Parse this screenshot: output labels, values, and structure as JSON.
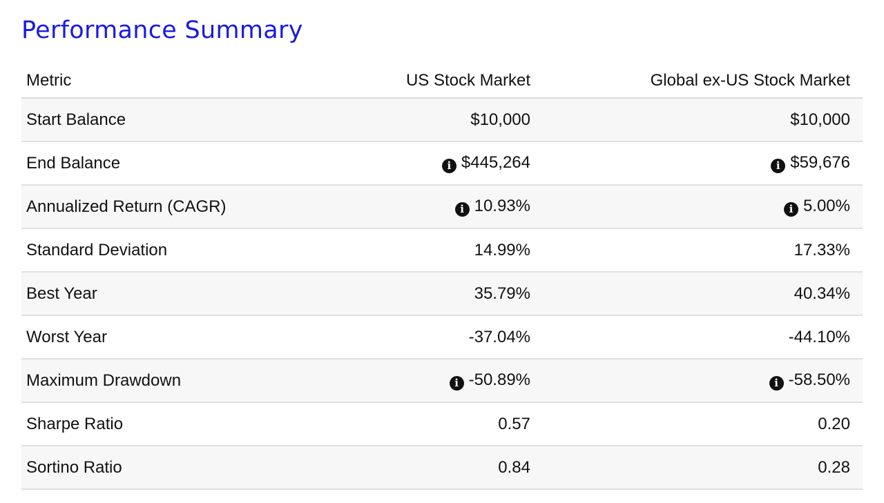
{
  "page": {
    "title": "Performance Summary",
    "accent_color": "#1a1adf"
  },
  "table": {
    "headers": [
      "Metric",
      "US Stock Market",
      "Global ex-US Stock Market"
    ],
    "rows": [
      {
        "metric": "Start Balance",
        "us": "$10,000",
        "global": "$10,000",
        "us_info": false,
        "global_info": false
      },
      {
        "metric": "End Balance",
        "us": "$445,264",
        "global": "$59,676",
        "us_info": true,
        "global_info": true
      },
      {
        "metric": "Annualized Return (CAGR)",
        "us": "10.93%",
        "global": "5.00%",
        "us_info": true,
        "global_info": true
      },
      {
        "metric": "Standard Deviation",
        "us": "14.99%",
        "global": "17.33%",
        "us_info": false,
        "global_info": false
      },
      {
        "metric": "Best Year",
        "us": "35.79%",
        "global": "40.34%",
        "us_info": false,
        "global_info": false
      },
      {
        "metric": "Worst Year",
        "us": "-37.04%",
        "global": "-44.10%",
        "us_info": false,
        "global_info": false
      },
      {
        "metric": "Maximum Drawdown",
        "us": "-50.89%",
        "global": "-58.50%",
        "us_info": true,
        "global_info": true
      },
      {
        "metric": "Sharpe Ratio",
        "us": "0.57",
        "global": "0.20",
        "us_info": false,
        "global_info": false
      },
      {
        "metric": "Sortino Ratio",
        "us": "0.84",
        "global": "0.28",
        "us_info": false,
        "global_info": false
      }
    ],
    "info_icon": "info-circle-icon"
  }
}
